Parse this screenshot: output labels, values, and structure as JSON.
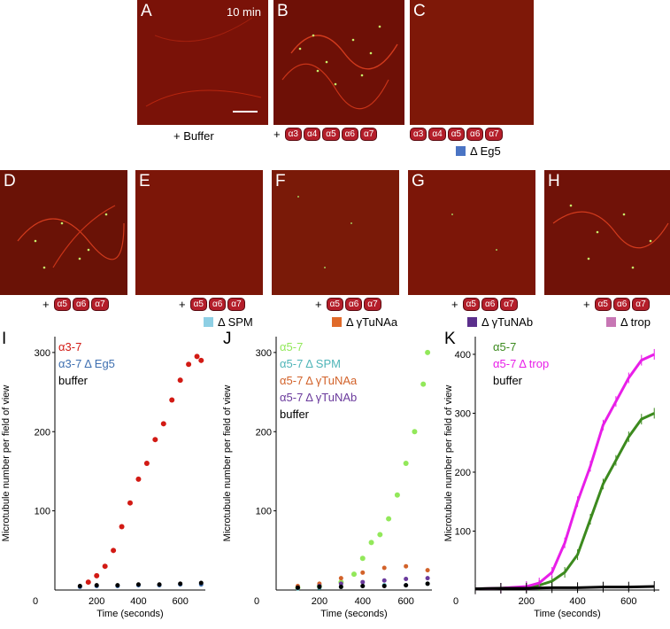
{
  "top_row": {
    "panel_a": {
      "letter": "A",
      "time": "10 min",
      "caption": "+ Buffer"
    },
    "panel_b": {
      "letter": "B",
      "plus": "+",
      "chips": [
        "α3",
        "α4",
        "α5",
        "α6",
        "α7"
      ]
    },
    "panel_c": {
      "letter": "C",
      "chips": [
        "α3",
        "α4",
        "α5",
        "α6",
        "α7"
      ],
      "deletion": "Δ Eg5",
      "color": "#4a74c4"
    }
  },
  "mid_row": {
    "panel_d": {
      "letter": "D",
      "plus": "+",
      "chips": [
        "α5",
        "α6",
        "α7"
      ]
    },
    "panel_e": {
      "letter": "E",
      "plus": "+",
      "chips": [
        "α5",
        "α6",
        "α7"
      ],
      "deletion": "Δ SPM",
      "color": "#8ecfe4"
    },
    "panel_f": {
      "letter": "F",
      "plus": "+",
      "chips": [
        "α5",
        "α6",
        "α7"
      ],
      "deletion": "Δ γTuNAa",
      "color": "#e06a2a"
    },
    "panel_g": {
      "letter": "G",
      "plus": "+",
      "chips": [
        "α5",
        "α6",
        "α7"
      ],
      "deletion": "Δ γTuNAb",
      "color": "#5b2f8c"
    },
    "panel_h": {
      "letter": "H",
      "plus": "+",
      "chips": [
        "α5",
        "α6",
        "α7"
      ],
      "deletion": "Δ trop",
      "color": "#c776b4"
    }
  },
  "colors": {
    "micro_bg": "#7a1208",
    "chip": "#b41e2a"
  },
  "chart_data": [
    {
      "type": "scatter",
      "panel": "I",
      "ylabel": "Microtubule number per field of view",
      "xlabel": "Time (seconds)",
      "xlim": [
        0,
        720
      ],
      "ylim": [
        0,
        320
      ],
      "xticks": [
        0,
        200,
        400,
        600
      ],
      "yticks": [
        100,
        200,
        300
      ],
      "series": [
        {
          "name": "α3-7",
          "color": "#d21a14",
          "x": [
            160,
            200,
            240,
            280,
            320,
            360,
            400,
            440,
            480,
            520,
            560,
            600,
            640,
            680,
            700
          ],
          "y": [
            10,
            18,
            30,
            50,
            80,
            110,
            140,
            160,
            190,
            210,
            240,
            265,
            285,
            295,
            290
          ]
        },
        {
          "name": "α3-7 Δ Eg5",
          "color": "#3e6fb0",
          "x": [
            120,
            200,
            300,
            400,
            500,
            600,
            700
          ],
          "y": [
            4,
            5,
            5,
            6,
            6,
            7,
            7
          ]
        },
        {
          "name": "buffer",
          "color": "#000000",
          "x": [
            120,
            200,
            300,
            400,
            500,
            600,
            700
          ],
          "y": [
            5,
            6,
            6,
            7,
            7,
            8,
            9
          ]
        }
      ]
    },
    {
      "type": "scatter",
      "panel": "J",
      "ylabel": "Microtubule number per field of view",
      "xlabel": "Time (seconds)",
      "xlim": [
        0,
        720
      ],
      "ylim": [
        0,
        320
      ],
      "xticks": [
        0,
        200,
        400,
        600
      ],
      "yticks": [
        100,
        200,
        300
      ],
      "series": [
        {
          "name": "α5-7",
          "color": "#92e85a",
          "x": [
            100,
            200,
            300,
            360,
            400,
            440,
            480,
            520,
            560,
            600,
            640,
            680,
            700
          ],
          "y": [
            3,
            5,
            10,
            20,
            40,
            60,
            70,
            90,
            120,
            160,
            200,
            260,
            300
          ]
        },
        {
          "name": "α5-7 Δ SPM",
          "color": "#4fb5b8",
          "x": [
            100,
            200,
            300,
            400,
            500,
            600,
            700
          ],
          "y": [
            2,
            3,
            4,
            5,
            6,
            6,
            8
          ]
        },
        {
          "name": "α5-7 Δ γTuNAa",
          "color": "#d2622a",
          "x": [
            100,
            200,
            300,
            400,
            500,
            600,
            700
          ],
          "y": [
            5,
            8,
            15,
            22,
            28,
            30,
            25
          ]
        },
        {
          "name": "α5-7 Δ γTuNAb",
          "color": "#6a3a9c",
          "x": [
            100,
            200,
            300,
            400,
            500,
            600,
            700
          ],
          "y": [
            3,
            5,
            8,
            10,
            12,
            14,
            15
          ]
        },
        {
          "name": "buffer",
          "color": "#000000",
          "x": [
            100,
            200,
            300,
            400,
            500,
            600,
            700
          ],
          "y": [
            3,
            4,
            4,
            5,
            5,
            6,
            8
          ]
        }
      ]
    },
    {
      "type": "line",
      "panel": "K",
      "ylabel": "Microtubule number per field of view",
      "xlabel": "Time (seconds)",
      "xlim": [
        0,
        720
      ],
      "ylim": [
        0,
        430
      ],
      "xticks": [
        0,
        200,
        400,
        600
      ],
      "yticks": [
        100,
        200,
        300,
        400
      ],
      "series": [
        {
          "name": "α5-7",
          "color": "#3c8a1e",
          "x": [
            0,
            100,
            200,
            250,
            300,
            350,
            400,
            450,
            500,
            550,
            600,
            650,
            700
          ],
          "y": [
            2,
            3,
            5,
            8,
            15,
            30,
            60,
            120,
            180,
            220,
            260,
            290,
            300
          ]
        },
        {
          "name": "α5-7 Δ trop",
          "color": "#e81ee8",
          "x": [
            0,
            100,
            200,
            250,
            300,
            350,
            400,
            450,
            500,
            550,
            600,
            650,
            700
          ],
          "y": [
            2,
            3,
            6,
            12,
            30,
            80,
            150,
            210,
            280,
            320,
            360,
            390,
            400
          ]
        },
        {
          "name": "buffer",
          "color": "#000000",
          "x": [
            0,
            100,
            200,
            300,
            400,
            500,
            600,
            700
          ],
          "y": [
            2,
            3,
            3,
            4,
            4,
            5,
            5,
            6
          ]
        }
      ]
    }
  ]
}
